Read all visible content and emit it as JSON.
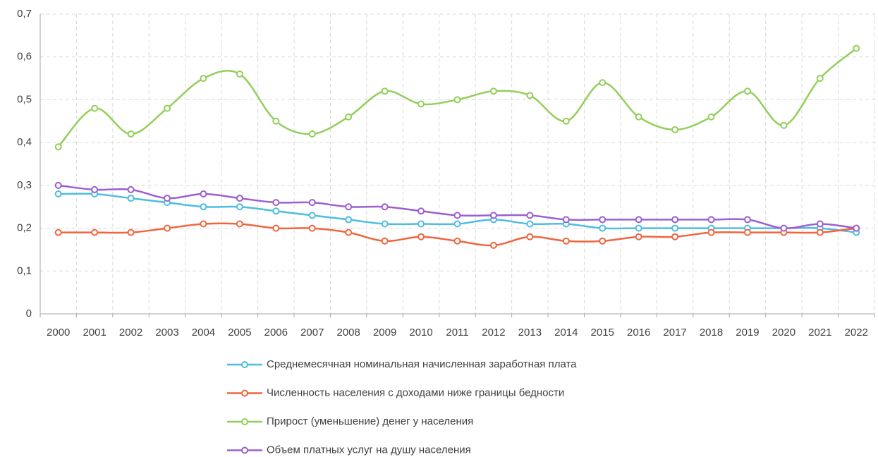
{
  "chart_data": {
    "type": "line",
    "categories": [
      "2000",
      "2001",
      "2002",
      "2003",
      "2004",
      "2005",
      "2006",
      "2007",
      "2008",
      "2009",
      "2010",
      "2011",
      "2012",
      "2013",
      "2014",
      "2015",
      "2016",
      "2017",
      "2018",
      "2019",
      "2020",
      "2021",
      "2022"
    ],
    "series": [
      {
        "name": "Среднемесячная номинальная начисленная заработная плата",
        "color": "#4dbde0",
        "values": [
          0.28,
          0.28,
          0.27,
          0.26,
          0.25,
          0.25,
          0.24,
          0.23,
          0.22,
          0.21,
          0.21,
          0.21,
          0.22,
          0.21,
          0.21,
          0.2,
          0.2,
          0.2,
          0.2,
          0.2,
          0.2,
          0.2,
          0.19
        ]
      },
      {
        "name": "Численность населения с доходами ниже границы бедности",
        "color": "#f0653d",
        "values": [
          0.19,
          0.19,
          0.19,
          0.2,
          0.21,
          0.21,
          0.2,
          0.2,
          0.19,
          0.17,
          0.18,
          0.17,
          0.16,
          0.18,
          0.17,
          0.17,
          0.18,
          0.18,
          0.19,
          0.19,
          0.19,
          0.19,
          0.2
        ]
      },
      {
        "name": "Прирост (уменьшение) денег у  населения",
        "color": "#92cf5a",
        "values": [
          0.39,
          0.48,
          0.42,
          0.48,
          0.55,
          0.56,
          0.45,
          0.42,
          0.46,
          0.52,
          0.49,
          0.5,
          0.52,
          0.51,
          0.45,
          0.54,
          0.46,
          0.43,
          0.46,
          0.52,
          0.44,
          0.55,
          0.62
        ]
      },
      {
        "name": "Объем платных услуг на душу населения",
        "color": "#9b5fd1",
        "values": [
          0.3,
          0.29,
          0.29,
          0.27,
          0.28,
          0.27,
          0.26,
          0.26,
          0.25,
          0.25,
          0.24,
          0.23,
          0.23,
          0.23,
          0.22,
          0.22,
          0.22,
          0.22,
          0.22,
          0.22,
          0.2,
          0.21,
          0.2
        ]
      }
    ],
    "ylim": [
      0,
      0.7
    ],
    "yticks": [
      0,
      {
        "value": 0.1,
        "label": "0,1"
      },
      {
        "value": 0.2,
        "label": "0,2"
      },
      {
        "value": 0.3,
        "label": "0,3"
      },
      {
        "value": 0.4,
        "label": "0,4"
      },
      {
        "value": 0.5,
        "label": "0,5"
      },
      {
        "value": 0.6,
        "label": "0,6"
      },
      {
        "value": 0.7,
        "label": "0,7"
      }
    ],
    "grid": true,
    "smooth": true,
    "legend": "bottom"
  }
}
